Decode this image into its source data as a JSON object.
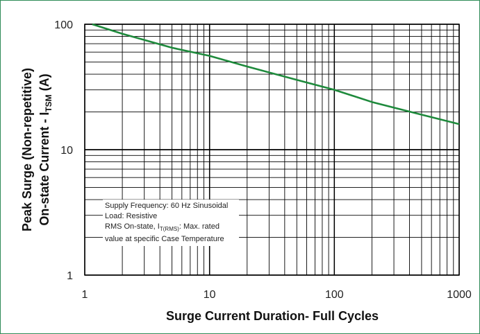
{
  "chart_data": {
    "type": "line",
    "xscale": "log",
    "yscale": "log",
    "xlim": [
      1,
      1000
    ],
    "ylim": [
      1,
      100
    ],
    "grid": true,
    "x_ticks": [
      "1",
      "10",
      "100",
      "1000"
    ],
    "y_ticks": [
      "1",
      "10",
      "100"
    ],
    "xlabel": "Surge Current Duration- Full Cycles",
    "ylabel_line1": "Peak Surge (Non-repetitive)",
    "ylabel_line2_prefix": "On-state Current - I",
    "ylabel_line2_sub": "TSM",
    "ylabel_line2_suffix": " (A)",
    "series": [
      {
        "color": "#1e8a3c",
        "x": [
          1.15,
          2,
          5,
          10,
          20,
          50,
          100,
          200,
          500,
          1000
        ],
        "y": [
          100,
          84,
          65,
          56,
          46,
          36,
          30,
          24,
          19,
          16
        ]
      }
    ],
    "annotation": {
      "line1": "Supply Frequency: 60 Hz Sinusoidal",
      "line2": "Load: Resistive",
      "line3_prefix": "RMS On-state, I",
      "line3_sub": "T(RMS)",
      "line3_suffix": ": Max. rated",
      "line4": "value at specific Case Temperature"
    }
  },
  "colors": {
    "frame": "#2e8b57",
    "grid": "#000000",
    "curve": "#1e8a3c"
  }
}
